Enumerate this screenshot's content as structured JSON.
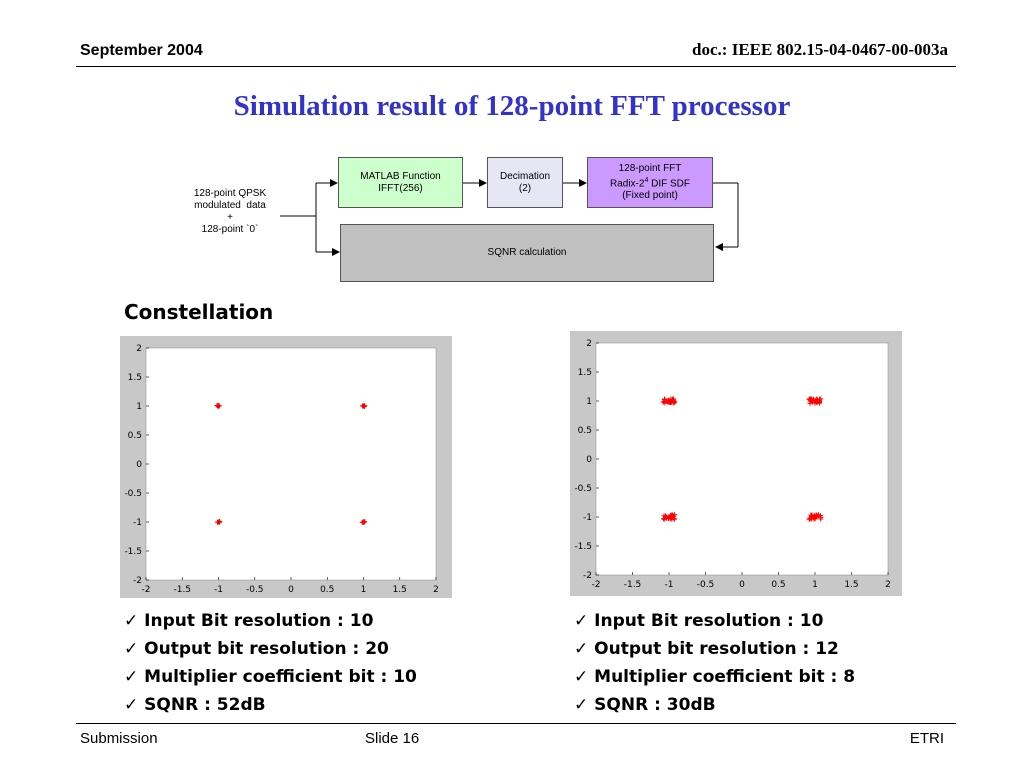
{
  "header": {
    "date": "September 2004",
    "doc_id": "doc.: IEEE 802.15-04-0467-00-003a"
  },
  "title": "Simulation result of 128-point FFT processor",
  "diagram": {
    "input_label_lines": [
      "128-point QPSK",
      "modulated  data",
      "+",
      "128-point `0`"
    ],
    "matlab_box": [
      "MATLAB Function",
      "IFFT(256)"
    ],
    "decimation_box": [
      "Decimation",
      "(2)"
    ],
    "fft_box": [
      "128-point FFT",
      "Radix-2",
      "4",
      " DIF SDF",
      "(Fixed point)"
    ],
    "sqnr_box": "SQNR calculation",
    "colors": {
      "matlab": "#ccffcc",
      "decimation": "#e6e6f5",
      "fft": "#cc99ff",
      "sqnr": "#c0c0c0"
    }
  },
  "section_heading": "Constellation",
  "chart_data": [
    {
      "type": "scatter",
      "title": "",
      "xlabel": "",
      "ylabel": "",
      "xlim": [
        -2,
        2
      ],
      "ylim": [
        -2,
        2
      ],
      "x_ticks": [
        "-2",
        "-1.5",
        "-1",
        "-0.5",
        "0",
        "0.5",
        "1",
        "1.5",
        "2"
      ],
      "y_ticks": [
        "2",
        "1.5",
        "1",
        "0.5",
        "0",
        "-0.5",
        "-1",
        "-1.5",
        "-2"
      ],
      "marker_color": "#ff0000",
      "points": [
        [
          -1,
          1
        ],
        [
          1,
          1
        ],
        [
          -1,
          -1
        ],
        [
          1,
          -1
        ]
      ],
      "spread": 0.02
    },
    {
      "type": "scatter",
      "title": "",
      "xlabel": "",
      "ylabel": "",
      "xlim": [
        -2,
        2
      ],
      "ylim": [
        -2,
        2
      ],
      "x_ticks": [
        "-2",
        "-1.5",
        "-1",
        "-0.5",
        "0",
        "0.5",
        "1",
        "1.5",
        "2"
      ],
      "y_ticks": [
        "2",
        "1.5",
        "1",
        "0.5",
        "0",
        "-0.5",
        "-1",
        "-1.5",
        "-2"
      ],
      "marker_color": "#ff0000",
      "points": [
        [
          -1,
          1
        ],
        [
          1,
          1
        ],
        [
          -1,
          -1
        ],
        [
          1,
          -1
        ]
      ],
      "spread": 0.08
    }
  ],
  "left_results": [
    "✓ Input Bit resolution : 10",
    "✓ Output bit resolution : 20",
    "✓ Multiplier coefficient bit : 10",
    "✓ SQNR : 52dB"
  ],
  "right_results": [
    "✓ Input Bit resolution : 10",
    "✓ Output bit resolution : 12",
    "✓ Multiplier coefficient bit : 8",
    "✓ SQNR : 30dB"
  ],
  "footer": {
    "left": "Submission",
    "center": "Slide 16",
    "right": "ETRI"
  }
}
